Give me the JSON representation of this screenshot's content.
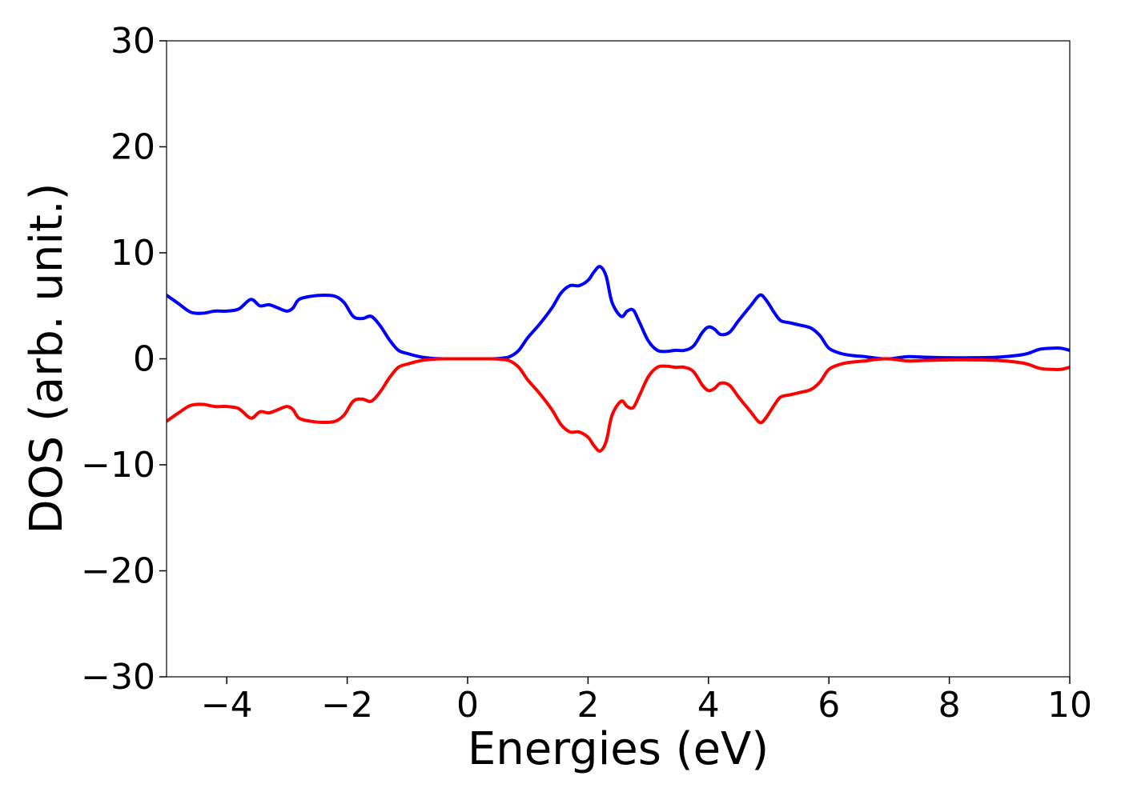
{
  "chart_data": {
    "type": "line",
    "title": "",
    "xlabel": "Energies (eV)",
    "ylabel": "DOS (arb. unit.)",
    "xlim": [
      -5,
      10
    ],
    "ylim": [
      -30,
      30
    ],
    "xticks": [
      -4,
      -2,
      0,
      2,
      4,
      6,
      8,
      10
    ],
    "yticks": [
      -30,
      -20,
      -10,
      0,
      10,
      20,
      30
    ],
    "xtick_labels": [
      "−4",
      "−2",
      "0",
      "2",
      "4",
      "6",
      "8",
      "10"
    ],
    "ytick_labels": [
      "−30",
      "−20",
      "−10",
      "0",
      "10",
      "20",
      "30"
    ],
    "grid": false,
    "legend": "none",
    "series": [
      {
        "color": "#0000ff",
        "x": [
          -5.0,
          -4.8,
          -4.6,
          -4.4,
          -4.2,
          -4.0,
          -3.8,
          -3.6,
          -3.45,
          -3.3,
          -3.15,
          -3.0,
          -2.9,
          -2.8,
          -2.6,
          -2.4,
          -2.2,
          -2.05,
          -1.9,
          -1.75,
          -1.6,
          -1.45,
          -1.3,
          -1.15,
          -1.0,
          -0.8,
          -0.6,
          -0.4,
          -0.2,
          0.0,
          0.2,
          0.4,
          0.55,
          0.7,
          0.85,
          1.0,
          1.2,
          1.4,
          1.55,
          1.7,
          1.85,
          2.0,
          2.1,
          2.2,
          2.3,
          2.4,
          2.55,
          2.65,
          2.75,
          2.85,
          3.0,
          3.15,
          3.3,
          3.45,
          3.6,
          3.75,
          3.9,
          4.0,
          4.1,
          4.2,
          4.35,
          4.5,
          4.7,
          4.85,
          4.95,
          5.1,
          5.2,
          5.35,
          5.5,
          5.7,
          5.85,
          6.0,
          6.2,
          6.4,
          6.6,
          6.8,
          7.0,
          7.3,
          7.6,
          8.0,
          8.4,
          8.8,
          9.1,
          9.3,
          9.5,
          9.7,
          9.85,
          10.0
        ],
        "y": [
          6.0,
          5.2,
          4.4,
          4.3,
          4.5,
          4.5,
          4.7,
          5.6,
          5.0,
          5.1,
          4.8,
          4.5,
          4.8,
          5.6,
          5.9,
          6.0,
          5.9,
          5.3,
          4.0,
          3.8,
          4.0,
          3.1,
          1.8,
          0.8,
          0.5,
          0.2,
          0.05,
          0.0,
          0.0,
          0.0,
          0.0,
          0.0,
          0.05,
          0.2,
          0.8,
          2.0,
          3.3,
          4.8,
          6.2,
          6.9,
          6.9,
          7.4,
          8.2,
          8.7,
          7.8,
          5.3,
          4.0,
          4.5,
          4.6,
          3.5,
          1.7,
          0.8,
          0.7,
          0.8,
          0.8,
          1.2,
          2.5,
          3.0,
          2.8,
          2.3,
          2.5,
          3.6,
          5.0,
          6.0,
          5.6,
          4.3,
          3.6,
          3.4,
          3.2,
          2.9,
          2.2,
          1.0,
          0.5,
          0.3,
          0.2,
          0.05,
          0.0,
          0.2,
          0.15,
          0.1,
          0.1,
          0.15,
          0.3,
          0.5,
          0.9,
          1.0,
          1.0,
          0.8
        ]
      },
      {
        "color": "#ff0000",
        "x": [
          -5.0,
          -4.8,
          -4.6,
          -4.4,
          -4.2,
          -4.0,
          -3.8,
          -3.6,
          -3.45,
          -3.3,
          -3.15,
          -3.0,
          -2.9,
          -2.8,
          -2.6,
          -2.4,
          -2.2,
          -2.05,
          -1.9,
          -1.75,
          -1.6,
          -1.45,
          -1.3,
          -1.15,
          -1.0,
          -0.8,
          -0.6,
          -0.4,
          -0.2,
          0.0,
          0.2,
          0.4,
          0.55,
          0.7,
          0.85,
          1.0,
          1.2,
          1.4,
          1.55,
          1.7,
          1.85,
          2.0,
          2.1,
          2.2,
          2.3,
          2.4,
          2.55,
          2.65,
          2.75,
          2.85,
          3.0,
          3.15,
          3.3,
          3.45,
          3.6,
          3.75,
          3.9,
          4.0,
          4.1,
          4.2,
          4.35,
          4.5,
          4.7,
          4.85,
          4.95,
          5.1,
          5.2,
          5.35,
          5.5,
          5.7,
          5.85,
          6.0,
          6.2,
          6.4,
          6.6,
          6.8,
          7.0,
          7.3,
          7.6,
          8.0,
          8.4,
          8.8,
          9.1,
          9.3,
          9.5,
          9.7,
          9.85,
          10.0
        ],
        "y": [
          -5.9,
          -5.1,
          -4.4,
          -4.3,
          -4.5,
          -4.5,
          -4.7,
          -5.6,
          -5.0,
          -5.1,
          -4.8,
          -4.5,
          -4.8,
          -5.6,
          -5.9,
          -6.0,
          -5.9,
          -5.3,
          -4.0,
          -3.8,
          -4.0,
          -3.1,
          -1.8,
          -0.8,
          -0.5,
          -0.2,
          -0.05,
          0.0,
          0.0,
          0.0,
          0.0,
          0.0,
          -0.05,
          -0.2,
          -0.8,
          -2.0,
          -3.3,
          -4.8,
          -6.2,
          -6.9,
          -6.9,
          -7.4,
          -8.2,
          -8.7,
          -7.8,
          -5.3,
          -4.0,
          -4.5,
          -4.6,
          -3.5,
          -1.7,
          -0.8,
          -0.7,
          -0.8,
          -0.8,
          -1.2,
          -2.5,
          -3.0,
          -2.8,
          -2.3,
          -2.5,
          -3.6,
          -5.0,
          -6.0,
          -5.6,
          -4.3,
          -3.6,
          -3.4,
          -3.2,
          -2.9,
          -2.2,
          -1.0,
          -0.5,
          -0.3,
          -0.2,
          -0.05,
          0.0,
          -0.2,
          -0.15,
          -0.1,
          -0.1,
          -0.15,
          -0.3,
          -0.5,
          -0.9,
          -1.0,
          -1.0,
          -0.8
        ]
      }
    ]
  }
}
